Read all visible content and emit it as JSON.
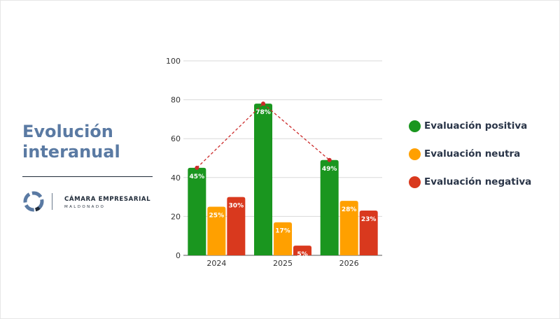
{
  "slide": {
    "title_lines": [
      "Evolución",
      "interanual"
    ],
    "brand": {
      "name": "CÁMARA EMPRESARIAL",
      "sub": "MALDONADO"
    }
  },
  "colors": {
    "positive": "#1a961f",
    "neutral": "#ffa000",
    "negative": "#d9391e",
    "trend": "#cc2b2b",
    "title": "#5a7aa3",
    "grid": "#d9d9d9"
  },
  "legend": [
    {
      "label": "Evaluación positiva",
      "color": "#1a961f"
    },
    {
      "label": "Evaluación neutra",
      "color": "#ffa000"
    },
    {
      "label": "Evaluación negativa",
      "color": "#d9391e"
    }
  ],
  "chart_data": {
    "type": "bar",
    "categories": [
      "2024",
      "2025",
      "2026"
    ],
    "series": [
      {
        "name": "Evaluación positiva",
        "values": [
          45,
          78,
          49
        ],
        "labels": [
          "45%",
          "78%",
          "49%"
        ],
        "color": "#1a961f"
      },
      {
        "name": "Evaluación neutra",
        "values": [
          25,
          17,
          28
        ],
        "labels": [
          "25%",
          "17%",
          "28%"
        ],
        "color": "#ffa000"
      },
      {
        "name": "Evaluación negativa",
        "values": [
          30,
          5,
          23
        ],
        "labels": [
          "30%",
          "5%",
          "23%"
        ],
        "color": "#d9391e"
      }
    ],
    "trend_line": {
      "series": "Evaluación positiva",
      "style": "dashed",
      "color": "#cc2b2b"
    },
    "y_ticks": [
      "0",
      "20",
      "40",
      "60",
      "80",
      "100"
    ],
    "ylim": [
      0,
      100
    ],
    "grid": true,
    "legend_position": "right"
  }
}
